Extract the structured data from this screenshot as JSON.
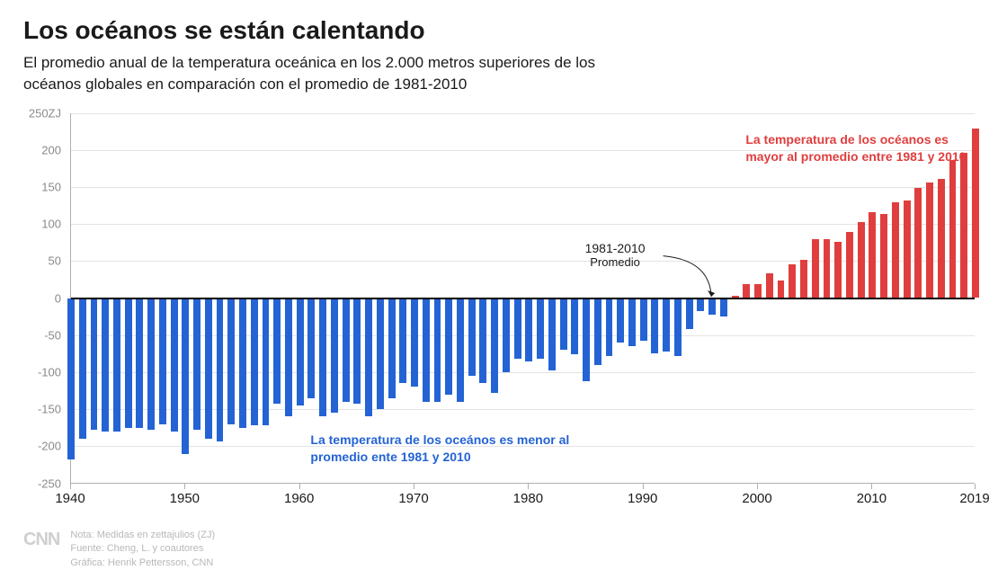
{
  "title": "Los océanos se están calentando",
  "subtitle": "El promedio anual de la temperatura oceánica en los 2.000 metros superiores de los océanos globales en comparación con el promedio de 1981-2010",
  "chart": {
    "type": "bar",
    "unit_label_suffix": "ZJ",
    "ylim": [
      -250,
      250
    ],
    "ytick_step": 50,
    "yticks": [
      "250ZJ",
      "200",
      "150",
      "100",
      "50",
      "0",
      "-50",
      "-100",
      "-150",
      "-200",
      "-250"
    ],
    "ytick_values": [
      250,
      200,
      150,
      100,
      50,
      0,
      -50,
      -100,
      -150,
      -200,
      -250
    ],
    "xlim": [
      1940,
      2019
    ],
    "xticks": [
      1940,
      1950,
      1960,
      1970,
      1980,
      1990,
      2000,
      2010,
      2019
    ],
    "grid_color": "#e3e3e3",
    "axis_color": "#b0b0b0",
    "zero_line_color": "#000000",
    "background_color": "#ffffff",
    "tick_label_color": "#8a8a8a",
    "xlabel_color": "#1a1a1a",
    "bar_width_ratio": 0.62,
    "positive_color": "#e03e3e",
    "negative_color": "#2463d4",
    "years": [
      1940,
      1941,
      1942,
      1943,
      1944,
      1945,
      1946,
      1947,
      1948,
      1949,
      1950,
      1951,
      1952,
      1953,
      1954,
      1955,
      1956,
      1957,
      1958,
      1959,
      1960,
      1961,
      1962,
      1963,
      1964,
      1965,
      1966,
      1967,
      1968,
      1969,
      1970,
      1971,
      1972,
      1973,
      1974,
      1975,
      1976,
      1977,
      1978,
      1979,
      1980,
      1981,
      1982,
      1983,
      1984,
      1985,
      1986,
      1987,
      1988,
      1989,
      1990,
      1991,
      1992,
      1993,
      1994,
      1995,
      1996,
      1997,
      1998,
      1999,
      2000,
      2001,
      2002,
      2003,
      2004,
      2005,
      2006,
      2007,
      2008,
      2009,
      2010,
      2011,
      2012,
      2013,
      2014,
      2015,
      2016,
      2017,
      2018,
      2019
    ],
    "values": [
      -218,
      -190,
      -178,
      -180,
      -180,
      -175,
      -175,
      -178,
      -170,
      -180,
      -210,
      -178,
      -190,
      -193,
      -170,
      -175,
      -172,
      -172,
      -142,
      -160,
      -145,
      -135,
      -160,
      -155,
      -140,
      -142,
      -160,
      -150,
      -135,
      -115,
      -120,
      -140,
      -140,
      -130,
      -140,
      -105,
      -115,
      -128,
      -100,
      -82,
      -85,
      -82,
      -98,
      -70,
      -76,
      -112,
      -90,
      -78,
      -60,
      -65,
      -58,
      -75,
      -72,
      -78,
      -42,
      -18,
      -22,
      -25,
      2,
      18,
      18,
      32,
      22,
      44,
      50,
      78,
      78,
      75,
      88,
      102,
      115,
      112,
      128,
      130,
      148,
      155,
      160,
      185,
      195,
      228
    ],
    "annotation_above": {
      "text": "La temperatura de los océanos es mayor al promedio entre 1981 y 2010",
      "color": "#e03e3e",
      "approx_year": 1999,
      "approx_value": 215
    },
    "annotation_below": {
      "text": "La temperatura de los oceános es menor al promedio ente 1981 y 2010",
      "color": "#2463d4",
      "approx_year": 1961,
      "approx_value": -190
    },
    "center_annotation": {
      "line1": "1981-2010",
      "line2": "Promedio",
      "color": "#1a1a1a",
      "point_year": 1996,
      "label_year": 1988.5,
      "label_value": 55
    }
  },
  "footer": {
    "logo": "CNN",
    "note": "Nota: Medidas en zettajulios (ZJ)",
    "source": "Fuente: Cheng, L. y coautores",
    "graphic": "Gráfica: Henrik Pettersson, CNN"
  }
}
